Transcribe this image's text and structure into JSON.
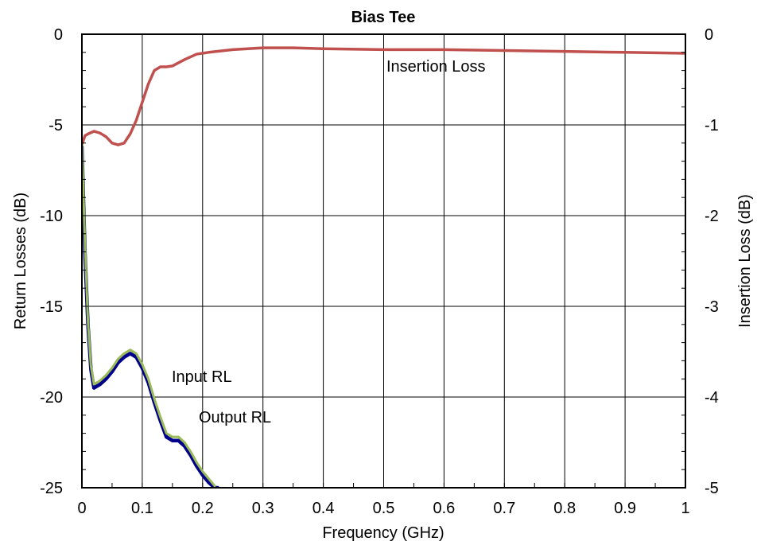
{
  "chart_data": {
    "type": "line",
    "title": "Bias Tee",
    "xlabel": "Frequency (GHz)",
    "ylabel_left": "Return Losses (dB)",
    "ylabel_right": "Insertion Loss (dB)",
    "xlim": [
      0,
      1
    ],
    "ylim_left": [
      -25,
      0
    ],
    "ylim_right": [
      -5,
      0
    ],
    "grid": true,
    "x_ticks": [
      "0",
      "0.1",
      "0.2",
      "0.3",
      "0.4",
      "0.5",
      "0.6",
      "0.7",
      "0.8",
      "0.9",
      "1"
    ],
    "y_ticks_left": [
      "0",
      "-5",
      "-10",
      "-15",
      "-20",
      "-25"
    ],
    "y_ticks_right": [
      "0",
      "-1",
      "-2",
      "-3",
      "-4",
      "-5"
    ],
    "series": [
      {
        "name": "Insertion Loss",
        "axis": "right",
        "color": "#c0504d",
        "x": [
          0,
          0.005,
          0.01,
          0.02,
          0.03,
          0.04,
          0.05,
          0.06,
          0.07,
          0.08,
          0.09,
          0.1,
          0.11,
          0.12,
          0.13,
          0.14,
          0.15,
          0.17,
          0.19,
          0.21,
          0.25,
          0.3,
          0.35,
          0.4,
          0.5,
          0.6,
          0.7,
          0.8,
          0.9,
          1.0
        ],
        "y": [
          -1.22,
          -1.12,
          -1.1,
          -1.07,
          -1.09,
          -1.13,
          -1.2,
          -1.22,
          -1.2,
          -1.1,
          -0.95,
          -0.75,
          -0.55,
          -0.4,
          -0.36,
          -0.36,
          -0.35,
          -0.28,
          -0.22,
          -0.2,
          -0.17,
          -0.15,
          -0.15,
          -0.16,
          -0.17,
          -0.17,
          -0.18,
          -0.19,
          -0.2,
          -0.21
        ]
      },
      {
        "name": "Input RL",
        "axis": "left",
        "color": "#00008b",
        "x": [
          0,
          0.005,
          0.01,
          0.015,
          0.02,
          0.03,
          0.04,
          0.05,
          0.06,
          0.07,
          0.08,
          0.09,
          0.1,
          0.11,
          0.12,
          0.13,
          0.14,
          0.15,
          0.16,
          0.17,
          0.18,
          0.19,
          0.2,
          0.21,
          0.22,
          0.225
        ],
        "y": [
          -6.2,
          -12,
          -16,
          -18.5,
          -19.5,
          -19.3,
          -19.0,
          -18.6,
          -18.1,
          -17.8,
          -17.6,
          -17.8,
          -18.4,
          -19.2,
          -20.3,
          -21.3,
          -22.2,
          -22.4,
          -22.4,
          -22.7,
          -23.2,
          -23.8,
          -24.3,
          -24.7,
          -25.0,
          -25.0
        ]
      },
      {
        "name": "Output RL",
        "axis": "left",
        "color": "#9bbb59",
        "x": [
          0,
          0.005,
          0.01,
          0.015,
          0.02,
          0.03,
          0.04,
          0.05,
          0.06,
          0.07,
          0.08,
          0.09,
          0.1,
          0.11,
          0.12,
          0.13,
          0.14,
          0.15,
          0.16,
          0.17,
          0.18,
          0.19,
          0.2,
          0.21,
          0.22
        ],
        "y": [
          -6.0,
          -11.5,
          -15.8,
          -18.3,
          -19.3,
          -19.1,
          -18.8,
          -18.4,
          -17.9,
          -17.6,
          -17.4,
          -17.6,
          -18.2,
          -19.0,
          -20.1,
          -21.1,
          -22.0,
          -22.2,
          -22.2,
          -22.5,
          -23.0,
          -23.6,
          -24.1,
          -24.5,
          -24.9
        ]
      }
    ],
    "annotations": [
      "Insertion Loss",
      "Input RL",
      "Output RL"
    ]
  }
}
